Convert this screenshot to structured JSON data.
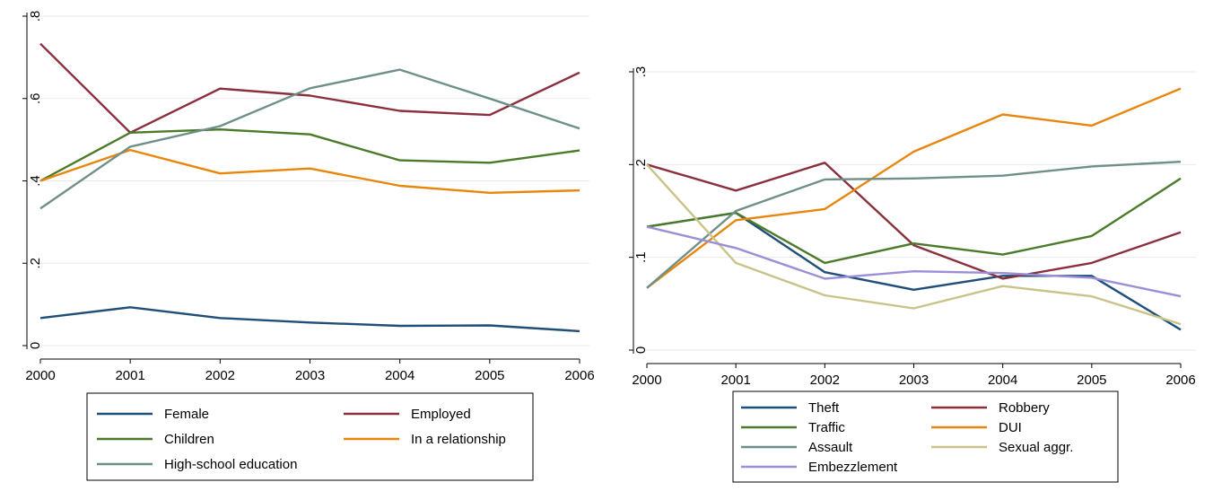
{
  "chart_data": [
    {
      "type": "line",
      "x": [
        2000,
        2001,
        2002,
        2003,
        2004,
        2005,
        2006
      ],
      "xticks": [
        "2000",
        "2001",
        "2002",
        "2003",
        "2004",
        "2005",
        "2006"
      ],
      "ylim": [
        0,
        0.8
      ],
      "yticks": [
        0,
        0.2,
        0.4,
        0.6,
        0.8
      ],
      "ytick_labels": [
        "0",
        ".2",
        ".4",
        ".6",
        ".8"
      ],
      "grid": true,
      "legend_position": "bottom",
      "series": [
        {
          "name": "Female",
          "color": "#1f4e79",
          "values": [
            0.067,
            0.093,
            0.067,
            0.056,
            0.048,
            0.049,
            0.035
          ]
        },
        {
          "name": "Employed",
          "color": "#8b2f3d",
          "values": [
            0.733,
            0.517,
            0.624,
            0.607,
            0.57,
            0.56,
            0.663
          ]
        },
        {
          "name": "Children",
          "color": "#4b7a2a",
          "values": [
            0.4,
            0.517,
            0.525,
            0.513,
            0.45,
            0.444,
            0.474
          ]
        },
        {
          "name": "In a relationship",
          "color": "#e8860c",
          "values": [
            0.4,
            0.475,
            0.418,
            0.43,
            0.388,
            0.371,
            0.377
          ]
        },
        {
          "name": "High-school education",
          "color": "#6f8f89",
          "values": [
            0.333,
            0.483,
            0.533,
            0.625,
            0.67,
            0.6,
            0.527
          ]
        }
      ]
    },
    {
      "type": "line",
      "x": [
        2000,
        2001,
        2002,
        2003,
        2004,
        2005,
        2006
      ],
      "xticks": [
        "2000",
        "2001",
        "2002",
        "2003",
        "2004",
        "2005",
        "2006"
      ],
      "ylim": [
        0,
        0.3
      ],
      "yticks": [
        0,
        0.1,
        0.2,
        0.3
      ],
      "ytick_labels": [
        "0",
        ".1",
        ".2",
        ".3"
      ],
      "grid": true,
      "legend_position": "bottom",
      "series": [
        {
          "name": "Theft",
          "color": "#1f4e79",
          "values": [
            0.133,
            0.148,
            0.084,
            0.065,
            0.08,
            0.08,
            0.022
          ]
        },
        {
          "name": "Robbery",
          "color": "#8b2f3d",
          "values": [
            0.2,
            0.172,
            0.202,
            0.113,
            0.077,
            0.094,
            0.127
          ]
        },
        {
          "name": "Traffic",
          "color": "#4b7a2a",
          "values": [
            0.133,
            0.148,
            0.094,
            0.115,
            0.103,
            0.123,
            0.185
          ]
        },
        {
          "name": "DUI",
          "color": "#e8860c",
          "values": [
            0.067,
            0.14,
            0.152,
            0.214,
            0.254,
            0.242,
            0.282
          ]
        },
        {
          "name": "Assault",
          "color": "#6f8f89",
          "values": [
            0.067,
            0.15,
            0.184,
            0.185,
            0.188,
            0.198,
            0.203
          ]
        },
        {
          "name": "Sexual aggr.",
          "color": "#c9c38a",
          "values": [
            0.2,
            0.094,
            0.059,
            0.045,
            0.069,
            0.058,
            0.028
          ]
        },
        {
          "name": "Embezzlement",
          "color": "#9a8fd6",
          "values": [
            0.133,
            0.11,
            0.077,
            0.085,
            0.083,
            0.078,
            0.058
          ]
        }
      ]
    }
  ]
}
